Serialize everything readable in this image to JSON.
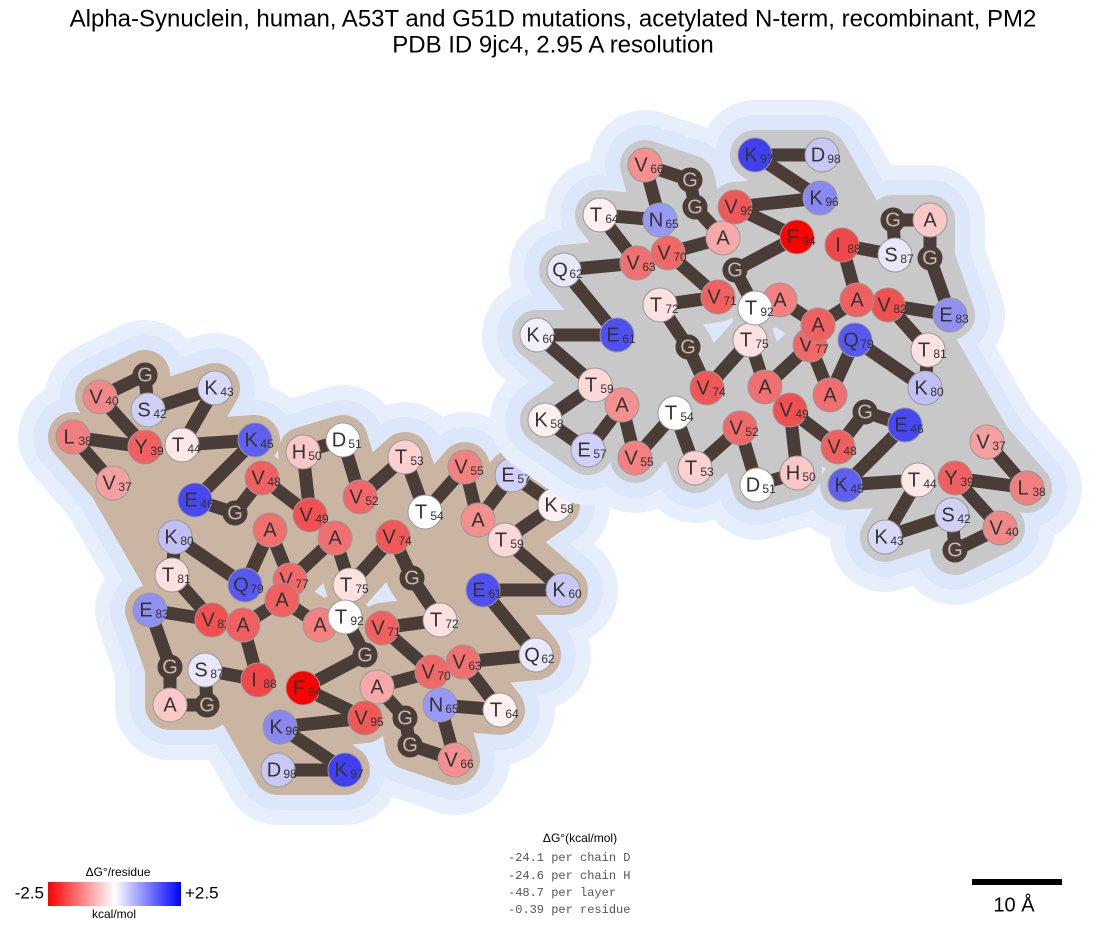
{
  "title": [
    "Alpha-Synuclein, human, A53T and G51D mutations, acetylated N-term, recombinant, PM2",
    "PDB ID 9jc4, 2.95 A resolution"
  ],
  "chains": [
    {
      "fill": "#c9b5a2",
      "residues": [
        {
          "code": "V",
          "number": 37,
          "color": "#f4a0a0"
        },
        {
          "code": "L",
          "number": 38,
          "color": "#f08080"
        },
        {
          "code": "Y",
          "number": 39,
          "color": "#f06060"
        },
        {
          "code": "V",
          "number": 40,
          "color": "#f08888"
        },
        {
          "code": "G",
          "color": "#4a3c36"
        },
        {
          "code": "S",
          "number": 42,
          "color": "#d0d0f5"
        },
        {
          "code": "K",
          "number": 43,
          "color": "#d8d8f8"
        },
        {
          "code": "T",
          "number": 44,
          "color": "#fde8e8"
        },
        {
          "code": "K",
          "number": 45,
          "color": "#6060f0"
        },
        {
          "code": "E",
          "number": 46,
          "color": "#4848f0"
        },
        {
          "code": "G",
          "color": "#4a3c36"
        },
        {
          "code": "V",
          "number": 48,
          "color": "#f06060"
        },
        {
          "code": "V",
          "number": 49,
          "color": "#f05050"
        },
        {
          "code": "H",
          "number": 50,
          "color": "#fbc8c8"
        },
        {
          "code": "D",
          "number": 51,
          "color": "#ffffff"
        },
        {
          "code": "V",
          "number": 52,
          "color": "#f06868"
        },
        {
          "code": "T",
          "number": 53,
          "color": "#fcd0d0"
        },
        {
          "code": "T",
          "number": 54,
          "color": "#ffffff"
        },
        {
          "code": "V",
          "number": 55,
          "color": "#f48080"
        },
        {
          "code": "A",
          "color": "#f49090"
        },
        {
          "code": "E",
          "number": 57,
          "color": "#d0d0f8"
        },
        {
          "code": "K",
          "number": 58,
          "color": "#fef0f0"
        },
        {
          "code": "T",
          "number": 59,
          "color": "#fcd8d8"
        },
        {
          "code": "K",
          "number": 60,
          "color": "#c8c8f5"
        },
        {
          "code": "E",
          "number": 61,
          "color": "#5050f0"
        },
        {
          "code": "Q",
          "number": 62,
          "color": "#e8e8fb"
        },
        {
          "code": "V",
          "number": 63,
          "color": "#f07070"
        },
        {
          "code": "T",
          "number": 64,
          "color": "#fef0f0"
        },
        {
          "code": "N",
          "number": 65,
          "color": "#9898f5"
        },
        {
          "code": "V",
          "number": 66,
          "color": "#f49090"
        },
        {
          "code": "G",
          "color": "#4a3c36"
        },
        {
          "code": "G",
          "color": "#4a3c36"
        },
        {
          "code": "A",
          "color": "#f8a8a8"
        },
        {
          "code": "V",
          "number": 70,
          "color": "#f06868"
        },
        {
          "code": "V",
          "number": 71,
          "color": "#f06060"
        },
        {
          "code": "T",
          "number": 72,
          "color": "#fde0e0"
        },
        {
          "code": "G",
          "color": "#4a3c36"
        },
        {
          "code": "V",
          "number": 74,
          "color": "#f05858"
        },
        {
          "code": "T",
          "number": 75,
          "color": "#fde0e0"
        },
        {
          "code": "A",
          "color": "#f07070"
        },
        {
          "code": "V",
          "number": 77,
          "color": "#f06868"
        },
        {
          "code": "A",
          "color": "#f07070"
        },
        {
          "code": "Q",
          "number": 79,
          "color": "#5858f0"
        },
        {
          "code": "K",
          "number": 80,
          "color": "#c0c0f5"
        },
        {
          "code": "T",
          "number": 81,
          "color": "#fde0e0"
        },
        {
          "code": "V",
          "number": 82,
          "color": "#f05050"
        },
        {
          "code": "E",
          "number": 83,
          "color": "#9090f0"
        },
        {
          "code": "G",
          "color": "#4a3c36"
        },
        {
          "code": "A",
          "color": "#fbc8c8"
        },
        {
          "code": "G",
          "color": "#4a3c36"
        },
        {
          "code": "S",
          "number": 87,
          "color": "#e8e8fa"
        },
        {
          "code": "I",
          "number": 88,
          "color": "#f04848"
        },
        {
          "code": "A",
          "color": "#f06060"
        },
        {
          "code": "A",
          "color": "#f06060"
        },
        {
          "code": "A",
          "color": "#f48080"
        },
        {
          "code": "T",
          "number": 92,
          "color": "#ffffff"
        },
        {
          "code": "G",
          "color": "#4a3c36"
        },
        {
          "code": "F",
          "number": 94,
          "color": "#ff0000"
        },
        {
          "code": "V",
          "number": 95,
          "color": "#f05858"
        },
        {
          "code": "K",
          "number": 96,
          "color": "#8888f0"
        },
        {
          "code": "K",
          "number": 97,
          "color": "#4040f0"
        },
        {
          "code": "D",
          "number": 98,
          "color": "#c8c8f5"
        }
      ]
    },
    {
      "fill": "#c8c8c8",
      "residues": [
        {
          "code": "V",
          "number": 37,
          "color": "#f4a0a0"
        },
        {
          "code": "L",
          "number": 38,
          "color": "#f08080"
        },
        {
          "code": "Y",
          "number": 39,
          "color": "#f06060"
        },
        {
          "code": "V",
          "number": 40,
          "color": "#f08888"
        },
        {
          "code": "G",
          "color": "#4a3c36"
        },
        {
          "code": "S",
          "number": 42,
          "color": "#d0d0f5"
        },
        {
          "code": "K",
          "number": 43,
          "color": "#d8d8f8"
        },
        {
          "code": "T",
          "number": 44,
          "color": "#fde8e8"
        },
        {
          "code": "K",
          "number": 45,
          "color": "#6060f0"
        },
        {
          "code": "E",
          "number": 46,
          "color": "#4848f0"
        },
        {
          "code": "G",
          "color": "#4a3c36"
        },
        {
          "code": "V",
          "number": 48,
          "color": "#f06060"
        },
        {
          "code": "V",
          "number": 49,
          "color": "#f05050"
        },
        {
          "code": "H",
          "number": 50,
          "color": "#fbc8c8"
        },
        {
          "code": "D",
          "number": 51,
          "color": "#ffffff"
        },
        {
          "code": "V",
          "number": 52,
          "color": "#f06868"
        },
        {
          "code": "T",
          "number": 53,
          "color": "#fcd0d0"
        },
        {
          "code": "T",
          "number": 54,
          "color": "#ffffff"
        },
        {
          "code": "V",
          "number": 55,
          "color": "#f48080"
        },
        {
          "code": "A",
          "color": "#f49090"
        },
        {
          "code": "E",
          "number": 57,
          "color": "#d0d0f8"
        },
        {
          "code": "K",
          "number": 58,
          "color": "#fef0f0"
        },
        {
          "code": "T",
          "number": 59,
          "color": "#fcd8d8"
        },
        {
          "code": "K",
          "number": 60,
          "color": "#f0f0fc"
        },
        {
          "code": "E",
          "number": 61,
          "color": "#5050f0"
        },
        {
          "code": "Q",
          "number": 62,
          "color": "#e8e8fb"
        },
        {
          "code": "V",
          "number": 63,
          "color": "#f07070"
        },
        {
          "code": "T",
          "number": 64,
          "color": "#fef0f0"
        },
        {
          "code": "N",
          "number": 65,
          "color": "#9898f5"
        },
        {
          "code": "V",
          "number": 66,
          "color": "#f49090"
        },
        {
          "code": "G",
          "color": "#4a3c36"
        },
        {
          "code": "G",
          "color": "#4a3c36"
        },
        {
          "code": "A",
          "color": "#f8a8a8"
        },
        {
          "code": "V",
          "number": 70,
          "color": "#f06868"
        },
        {
          "code": "V",
          "number": 71,
          "color": "#f06060"
        },
        {
          "code": "T",
          "number": 72,
          "color": "#fde0e0"
        },
        {
          "code": "G",
          "color": "#4a3c36"
        },
        {
          "code": "V",
          "number": 74,
          "color": "#f05858"
        },
        {
          "code": "T",
          "number": 75,
          "color": "#fde0e0"
        },
        {
          "code": "A",
          "color": "#f07070"
        },
        {
          "code": "V",
          "number": 77,
          "color": "#f06868"
        },
        {
          "code": "A",
          "color": "#f07070"
        },
        {
          "code": "Q",
          "number": 79,
          "color": "#5858f0"
        },
        {
          "code": "K",
          "number": 80,
          "color": "#c0c0f5"
        },
        {
          "code": "T",
          "number": 81,
          "color": "#fde0e0"
        },
        {
          "code": "V",
          "number": 82,
          "color": "#f05050"
        },
        {
          "code": "E",
          "number": 83,
          "color": "#9090f0"
        },
        {
          "code": "G",
          "color": "#4a3c36"
        },
        {
          "code": "A",
          "color": "#fbc8c8"
        },
        {
          "code": "G",
          "color": "#4a3c36"
        },
        {
          "code": "S",
          "number": 87,
          "color": "#e8e8fa"
        },
        {
          "code": "I",
          "number": 88,
          "color": "#f04848"
        },
        {
          "code": "A",
          "color": "#f06060"
        },
        {
          "code": "A",
          "color": "#f06060"
        },
        {
          "code": "A",
          "color": "#f48080"
        },
        {
          "code": "T",
          "number": 92,
          "color": "#ffffff"
        },
        {
          "code": "G",
          "color": "#4a3c36"
        },
        {
          "code": "F",
          "number": 94,
          "color": "#ff0000"
        },
        {
          "code": "V",
          "number": 95,
          "color": "#f05858"
        },
        {
          "code": "K",
          "number": 96,
          "color": "#8888f0"
        },
        {
          "code": "K",
          "number": 97,
          "color": "#4040f0"
        },
        {
          "code": "D",
          "number": 98,
          "color": "#c8c8f5"
        }
      ]
    }
  ],
  "energy": {
    "title": "ΔG°(kcal/mol)",
    "lines": [
      "-24.1 per chain D",
      "-24.6 per chain H",
      "-48.7 per layer",
      "-0.39 per residue"
    ]
  },
  "legend": {
    "title": "ΔG°/residue",
    "min": "-2.5",
    "max": "+2.5",
    "unit": "kcal/mol",
    "colors": [
      "#ff0000",
      "#ffffff",
      "#0000ff"
    ]
  },
  "scale_bar": {
    "label": "10 Å"
  }
}
